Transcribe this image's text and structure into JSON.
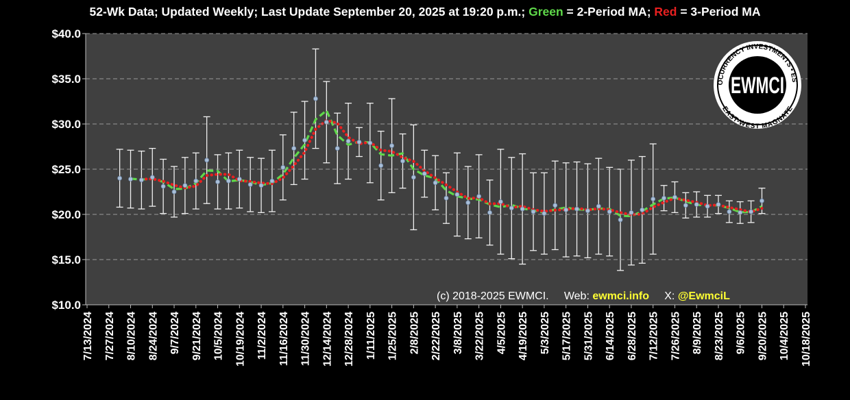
{
  "chart_data": {
    "type": "errorbar-line",
    "title_segments": [
      {
        "text": "52-Wk Data; Updated Weekly; Last Update September 20, 2025 at 19:20 p.m.; ",
        "color": "#ffffff"
      },
      {
        "text": "Green",
        "color": "#5fd94a"
      },
      {
        "text": " = 2-Period MA; ",
        "color": "#ffffff"
      },
      {
        "text": "Red",
        "color": "#e82020"
      },
      {
        "text": " = 3-Period MA",
        "color": "#ffffff"
      }
    ],
    "footer_segments": [
      {
        "text": "(c) 2018-2025 EWMCI.     Web: ",
        "color": "#ffffff"
      },
      {
        "text": "ewmci.info",
        "color": "#ffff33"
      },
      {
        "text": "     X: ",
        "color": "#ffffff"
      },
      {
        "text": "@EwmciL",
        "color": "#ffff33"
      }
    ],
    "logo": {
      "center": "EWMCI",
      "ring_top": "CRYPTOCURRENCY INVESTMENTS • EST 2018 •",
      "ring_bottom": "EAST-WEST MAGNATE"
    },
    "x": [
      "2024-08-03",
      "2024-08-10",
      "2024-08-17",
      "2024-08-24",
      "2024-08-31",
      "2024-09-07",
      "2024-09-14",
      "2024-09-21",
      "2024-09-28",
      "2024-10-05",
      "2024-10-12",
      "2024-10-19",
      "2024-10-26",
      "2024-11-02",
      "2024-11-09",
      "2024-11-16",
      "2024-11-23",
      "2024-11-30",
      "2024-12-07",
      "2024-12-14",
      "2024-12-21",
      "2024-12-28",
      "2025-01-04",
      "2025-01-11",
      "2025-01-18",
      "2025-01-25",
      "2025-02-01",
      "2025-02-08",
      "2025-02-15",
      "2025-02-22",
      "2025-03-01",
      "2025-03-08",
      "2025-03-15",
      "2025-03-22",
      "2025-03-29",
      "2025-04-05",
      "2025-04-12",
      "2025-04-19",
      "2025-04-26",
      "2025-05-03",
      "2025-05-10",
      "2025-05-17",
      "2025-05-24",
      "2025-05-31",
      "2025-06-07",
      "2025-06-14",
      "2025-06-21",
      "2025-06-28",
      "2025-07-05",
      "2025-07-12",
      "2025-07-19",
      "2025-07-26",
      "2025-08-02",
      "2025-08-09",
      "2025-08-16",
      "2025-08-23",
      "2025-08-30",
      "2025-09-06",
      "2025-09-13",
      "2025-09-20"
    ],
    "values": [
      24.0,
      23.9,
      23.8,
      24.1,
      23.1,
      22.5,
      23.2,
      23.7,
      26.0,
      23.6,
      23.7,
      23.9,
      23.3,
      23.2,
      23.7,
      25.2,
      27.3,
      28.2,
      32.8,
      30.2,
      27.3,
      28.1,
      28.0,
      27.9,
      25.4,
      27.6,
      25.9,
      24.1,
      24.5,
      23.5,
      21.8,
      22.2,
      21.3,
      22.0,
      20.2,
      21.4,
      20.7,
      20.6,
      20.3,
      20.1,
      21.0,
      20.5,
      20.6,
      20.4,
      20.9,
      20.3,
      19.4,
      20.2,
      20.5,
      21.7,
      21.8,
      21.9,
      21.0,
      21.1,
      20.9,
      21.1,
      20.3,
      20.2,
      20.3,
      21.5
    ],
    "errors": [
      3.2,
      3.2,
      3.2,
      3.2,
      3.0,
      2.8,
      3.1,
      3.1,
      4.8,
      3.0,
      3.1,
      3.2,
      3.0,
      3.0,
      3.4,
      3.6,
      4.0,
      4.3,
      5.5,
      4.5,
      3.9,
      4.2,
      1.6,
      4.4,
      3.8,
      5.2,
      3.0,
      5.8,
      2.6,
      3.0,
      2.8,
      4.6,
      4.0,
      4.6,
      3.6,
      5.8,
      5.6,
      6.1,
      4.3,
      4.5,
      4.9,
      5.2,
      5.2,
      5.2,
      5.3,
      4.9,
      5.6,
      5.8,
      5.9,
      6.1,
      1.4,
      1.7,
      1.4,
      1.4,
      1.2,
      1.0,
      1.2,
      1.2,
      1.2,
      1.4
    ],
    "point_color": "#a9bfd8",
    "error_color": "#f0f0f0",
    "series": [
      {
        "color": "#5fd94a",
        "style": "dashed",
        "values": [
          null,
          23.95,
          23.85,
          23.95,
          23.6,
          22.8,
          22.85,
          23.45,
          24.85,
          24.8,
          23.65,
          23.8,
          23.6,
          23.25,
          23.45,
          24.45,
          26.25,
          27.75,
          30.5,
          31.5,
          28.75,
          27.7,
          28.05,
          27.95,
          26.65,
          26.5,
          26.75,
          25.0,
          24.3,
          24.0,
          22.65,
          22.0,
          21.75,
          21.65,
          21.1,
          20.8,
          21.05,
          20.65,
          20.45,
          20.2,
          20.55,
          20.75,
          20.55,
          20.5,
          20.65,
          20.6,
          19.85,
          19.8,
          20.35,
          21.1,
          21.75,
          21.85,
          21.45,
          21.05,
          21.0,
          21.0,
          20.7,
          20.25,
          20.25,
          20.9
        ]
      },
      {
        "color": "#e82020",
        "style": "dotted",
        "values": [
          null,
          null,
          23.9,
          23.93,
          23.67,
          23.23,
          22.93,
          23.13,
          24.3,
          24.43,
          24.43,
          23.73,
          23.63,
          23.47,
          23.4,
          24.03,
          25.4,
          26.9,
          29.43,
          30.4,
          30.1,
          28.53,
          27.8,
          28.0,
          27.1,
          26.97,
          26.3,
          25.87,
          24.83,
          24.03,
          23.27,
          22.5,
          21.77,
          21.83,
          21.17,
          21.2,
          20.77,
          20.9,
          20.53,
          20.33,
          20.47,
          20.53,
          20.7,
          20.5,
          20.63,
          20.53,
          20.2,
          19.97,
          20.03,
          20.8,
          21.33,
          21.8,
          21.57,
          21.33,
          21.0,
          21.03,
          20.77,
          20.53,
          20.27,
          20.67
        ]
      }
    ],
    "ylim": [
      10,
      40
    ],
    "yticks": [
      {
        "value": 10,
        "label": "$10.0"
      },
      {
        "value": 15,
        "label": "$15.0"
      },
      {
        "value": 20,
        "label": "$20.0"
      },
      {
        "value": 25,
        "label": "$25.0"
      },
      {
        "value": 30,
        "label": "$30.0"
      },
      {
        "value": 35,
        "label": "$35.0"
      },
      {
        "value": 40,
        "label": "$40.0"
      }
    ],
    "xlim": [
      "2024-07-13",
      "2025-10-18"
    ],
    "xticks": [
      {
        "value": "2024-07-13",
        "label": "7/13/2024"
      },
      {
        "value": "2024-07-27",
        "label": "7/27/2024"
      },
      {
        "value": "2024-08-10",
        "label": "8/10/2024"
      },
      {
        "value": "2024-08-24",
        "label": "8/24/2024"
      },
      {
        "value": "2024-09-07",
        "label": "9/7/2024"
      },
      {
        "value": "2024-09-21",
        "label": "9/21/2024"
      },
      {
        "value": "2024-10-05",
        "label": "10/5/2024"
      },
      {
        "value": "2024-10-19",
        "label": "10/19/2024"
      },
      {
        "value": "2024-11-02",
        "label": "11/2/2024"
      },
      {
        "value": "2024-11-16",
        "label": "11/16/2024"
      },
      {
        "value": "2024-11-30",
        "label": "11/30/2024"
      },
      {
        "value": "2024-12-14",
        "label": "12/14/2024"
      },
      {
        "value": "2024-12-28",
        "label": "12/28/2024"
      },
      {
        "value": "2025-01-11",
        "label": "1/11/2025"
      },
      {
        "value": "2025-01-25",
        "label": "1/25/2025"
      },
      {
        "value": "2025-02-08",
        "label": "2/8/2025"
      },
      {
        "value": "2025-02-22",
        "label": "2/22/2025"
      },
      {
        "value": "2025-03-08",
        "label": "3/8/2025"
      },
      {
        "value": "2025-03-22",
        "label": "3/22/2025"
      },
      {
        "value": "2025-04-05",
        "label": "4/5/2025"
      },
      {
        "value": "2025-04-19",
        "label": "4/19/2025"
      },
      {
        "value": "2025-05-03",
        "label": "5/3/2025"
      },
      {
        "value": "2025-05-17",
        "label": "5/17/2025"
      },
      {
        "value": "2025-05-31",
        "label": "5/31/2025"
      },
      {
        "value": "2025-06-14",
        "label": "6/14/2025"
      },
      {
        "value": "2025-06-28",
        "label": "6/28/2025"
      },
      {
        "value": "2025-07-12",
        "label": "7/12/2025"
      },
      {
        "value": "2025-07-26",
        "label": "7/26/2025"
      },
      {
        "value": "2025-08-09",
        "label": "8/9/2025"
      },
      {
        "value": "2025-08-23",
        "label": "8/23/2025"
      },
      {
        "value": "2025-09-06",
        "label": "9/6/2025"
      },
      {
        "value": "2025-09-20",
        "label": "9/20/2025"
      },
      {
        "value": "2025-10-04",
        "label": "10/4/2025"
      },
      {
        "value": "2025-10-18",
        "label": "10/18/2025"
      }
    ],
    "grid": true
  }
}
